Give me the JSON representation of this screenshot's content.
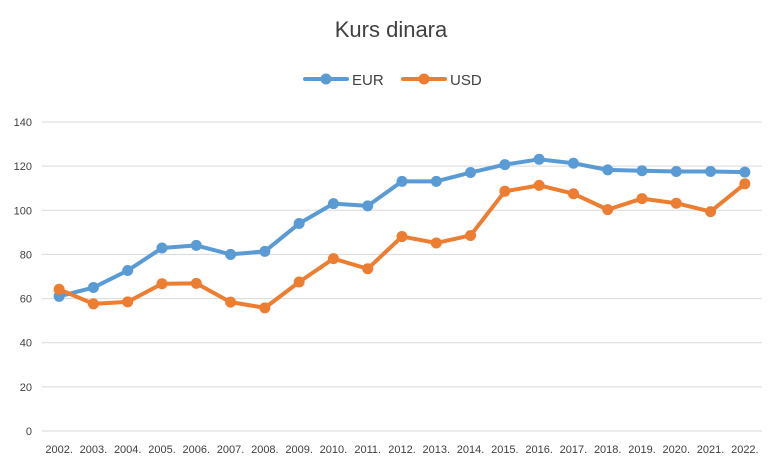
{
  "chart_data": {
    "type": "line",
    "title": "Kurs dinara",
    "xlabel": "",
    "ylabel": "",
    "categories": [
      "2002.",
      "2003.",
      "2004.",
      "2005.",
      "2006.",
      "2007.",
      "2008.",
      "2009.",
      "2010.",
      "2011.",
      "2012.",
      "2013.",
      "2014.",
      "2015.",
      "2016.",
      "2017.",
      "2018.",
      "2019.",
      "2020.",
      "2021.",
      "2022."
    ],
    "ylim": [
      0,
      140
    ],
    "yticks": [
      "0",
      "20",
      "40",
      "60",
      "80",
      "100",
      "120",
      "140"
    ],
    "grid": true,
    "legend_position": "top",
    "series": [
      {
        "name": "EUR",
        "color": "#5b9bd5",
        "values": [
          61,
          65,
          72.7,
          82.9,
          84.1,
          80,
          81.4,
          94,
          103,
          102,
          113.1,
          113.1,
          117.1,
          120.7,
          123.1,
          121.3,
          118.3,
          117.9,
          117.6,
          117.6,
          117.3
        ]
      },
      {
        "name": "USD",
        "color": "#ed7d31",
        "values": [
          64.2,
          57.6,
          58.5,
          66.7,
          66.9,
          58.4,
          55.8,
          67.5,
          78.1,
          73.5,
          88.1,
          85.2,
          88.6,
          108.6,
          111.3,
          107.5,
          100.3,
          105.3,
          103.2,
          99.4,
          112
        ]
      }
    ]
  }
}
